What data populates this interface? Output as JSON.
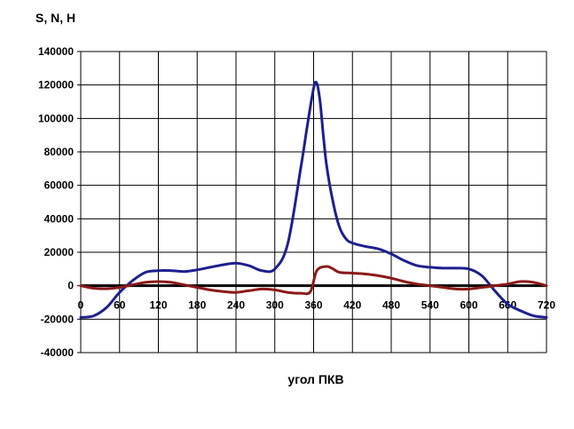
{
  "chart_data": {
    "type": "line",
    "ylabel": "S, N, H",
    "xlabel": "угол ПКВ",
    "xlim": [
      0,
      720
    ],
    "ylim": [
      -40000,
      140000
    ],
    "x_ticks": [
      "0",
      "60",
      "120",
      "180",
      "240",
      "300",
      "360",
      "420",
      "480",
      "540",
      "600",
      "660",
      "720"
    ],
    "y_ticks": [
      "140000",
      "120000",
      "100000",
      "80000",
      "60000",
      "40000",
      "20000",
      "0",
      "-20000",
      "-40000"
    ],
    "grid": true,
    "legend": "none",
    "series": [
      {
        "color": "#1f1f8f",
        "x": [
          0,
          20,
          40,
          60,
          80,
          100,
          120,
          140,
          160,
          180,
          200,
          220,
          240,
          260,
          280,
          300,
          320,
          340,
          350,
          360,
          365,
          370,
          375,
          380,
          390,
          400,
          410,
          420,
          440,
          460,
          480,
          500,
          520,
          540,
          560,
          580,
          600,
          620,
          640,
          660,
          680,
          700,
          720
        ],
        "y": [
          -19000,
          -18000,
          -13000,
          -4000,
          3000,
          8000,
          9000,
          9000,
          8500,
          9500,
          11000,
          12500,
          13500,
          12000,
          9000,
          10000,
          25000,
          70000,
          95000,
          118000,
          121000,
          110000,
          90000,
          72000,
          50000,
          35000,
          28000,
          25500,
          23500,
          22000,
          19000,
          15000,
          12000,
          11000,
          10500,
          10500,
          10000,
          6000,
          -3000,
          -11000,
          -15000,
          -18000,
          -19000
        ]
      },
      {
        "color": "#8b1a1a",
        "x": [
          0,
          20,
          40,
          60,
          80,
          100,
          120,
          140,
          160,
          180,
          200,
          220,
          240,
          260,
          280,
          300,
          320,
          340,
          355,
          365,
          380,
          390,
          400,
          420,
          440,
          460,
          480,
          500,
          520,
          540,
          560,
          580,
          600,
          620,
          640,
          660,
          680,
          700,
          720
        ],
        "y": [
          0,
          -1500,
          -1800,
          -1000,
          500,
          2000,
          2500,
          2000,
          500,
          -1000,
          -2500,
          -3500,
          -4000,
          -3000,
          -2000,
          -2500,
          -4000,
          -4500,
          -3500,
          9000,
          11500,
          10000,
          8000,
          7500,
          7000,
          6000,
          4500,
          2500,
          1000,
          0,
          -1000,
          -2000,
          -2000,
          -1000,
          0,
          1000,
          2500,
          2000,
          0
        ]
      }
    ]
  }
}
